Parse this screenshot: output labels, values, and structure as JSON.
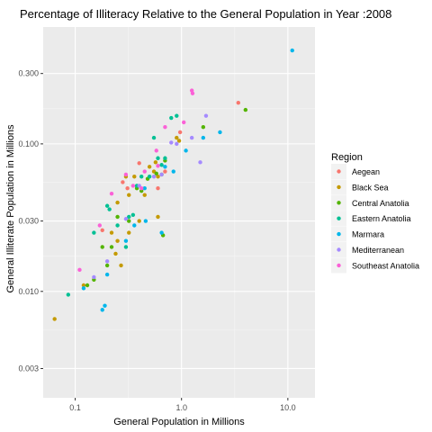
{
  "chart_data": {
    "type": "scatter",
    "title": "Percentage of Illiteracy Relative to the General Population in Year :2008",
    "xlabel": "General Population in Millions",
    "ylabel": "General Illiterate Population in Millions",
    "x_scale": "log10",
    "y_scale": "log10",
    "xlim": [
      0.05,
      18
    ],
    "ylim": [
      0.0019,
      0.62
    ],
    "xticks": [
      0.1,
      1.0,
      10.0
    ],
    "xtick_labels": [
      "0.1",
      "1.0",
      "10.0"
    ],
    "yticks": [
      0.003,
      0.01,
      0.03,
      0.1,
      0.3
    ],
    "ytick_labels": [
      "0.003",
      "0.010",
      "0.030",
      "0.100",
      "0.300"
    ],
    "grid": true,
    "legend_position": "right",
    "legend_title": "Region",
    "series": [
      {
        "name": "Aegean",
        "color": "#F8766D",
        "points": [
          [
            3.42,
            0.19
          ],
          [
            0.4,
            0.074
          ],
          [
            0.28,
            0.055
          ],
          [
            0.97,
            0.12
          ],
          [
            0.6,
            0.05
          ],
          [
            0.7,
            0.065
          ],
          [
            0.18,
            0.026
          ],
          [
            0.31,
            0.05
          ]
        ]
      },
      {
        "name": "Black Sea",
        "color": "#C49A00",
        "points": [
          [
            0.064,
            0.0065
          ],
          [
            0.12,
            0.011
          ],
          [
            0.25,
            0.04
          ],
          [
            0.22,
            0.025
          ],
          [
            0.3,
            0.06
          ],
          [
            0.25,
            0.022
          ],
          [
            0.24,
            0.018
          ],
          [
            0.36,
            0.06
          ],
          [
            0.45,
            0.045
          ],
          [
            0.5,
            0.07
          ],
          [
            0.55,
            0.065
          ],
          [
            0.57,
            0.075
          ],
          [
            0.9,
            0.11
          ],
          [
            0.95,
            0.105
          ],
          [
            0.4,
            0.03
          ],
          [
            0.27,
            0.015
          ],
          [
            0.32,
            0.025
          ],
          [
            0.6,
            0.06
          ],
          [
            0.32,
            0.045
          ],
          [
            0.6,
            0.032
          ]
        ]
      },
      {
        "name": "Central Anatolia",
        "color": "#53B400",
        "points": [
          [
            4.0,
            0.17
          ],
          [
            1.6,
            0.13
          ],
          [
            0.7,
            0.077
          ],
          [
            0.58,
            0.063
          ],
          [
            0.48,
            0.058
          ],
          [
            0.38,
            0.05
          ],
          [
            0.32,
            0.03
          ],
          [
            0.2,
            0.015
          ],
          [
            0.18,
            0.02
          ],
          [
            0.15,
            0.012
          ],
          [
            0.25,
            0.032
          ],
          [
            0.22,
            0.02
          ],
          [
            0.42,
            0.048
          ],
          [
            0.65,
            0.062
          ],
          [
            0.13,
            0.011
          ],
          [
            0.67,
            0.024
          ]
        ]
      },
      {
        "name": "Eastern Anatolia",
        "color": "#00C094",
        "points": [
          [
            0.086,
            0.0095
          ],
          [
            0.15,
            0.025
          ],
          [
            0.2,
            0.038
          ],
          [
            0.32,
            0.032
          ],
          [
            0.25,
            0.028
          ],
          [
            0.3,
            0.02
          ],
          [
            0.5,
            0.06
          ],
          [
            0.65,
            0.072
          ],
          [
            0.7,
            0.08
          ],
          [
            0.8,
            0.15
          ],
          [
            0.9,
            0.155
          ],
          [
            0.6,
            0.08
          ],
          [
            0.55,
            0.11
          ],
          [
            0.38,
            0.052
          ],
          [
            0.42,
            0.06
          ],
          [
            0.21,
            0.036
          ],
          [
            0.35,
            0.033
          ]
        ]
      },
      {
        "name": "Marmara",
        "color": "#00B6EB",
        "points": [
          [
            11.0,
            0.43
          ],
          [
            2.3,
            0.12
          ],
          [
            1.6,
            0.11
          ],
          [
            1.1,
            0.09
          ],
          [
            0.65,
            0.025
          ],
          [
            0.46,
            0.03
          ],
          [
            0.36,
            0.028
          ],
          [
            0.3,
            0.022
          ],
          [
            0.2,
            0.013
          ],
          [
            0.19,
            0.008
          ],
          [
            0.18,
            0.0075
          ],
          [
            0.12,
            0.0105
          ],
          [
            0.7,
            0.07
          ],
          [
            0.45,
            0.05
          ],
          [
            0.84,
            0.065
          ]
        ]
      },
      {
        "name": "Mediterranean",
        "color": "#A58AFF",
        "points": [
          [
            1.7,
            0.155
          ],
          [
            1.5,
            0.075
          ],
          [
            1.25,
            0.11
          ],
          [
            0.9,
            0.1
          ],
          [
            0.8,
            0.102
          ],
          [
            0.55,
            0.06
          ],
          [
            0.4,
            0.052
          ],
          [
            0.3,
            0.031
          ],
          [
            0.2,
            0.016
          ],
          [
            0.15,
            0.0125
          ],
          [
            0.65,
            0.062
          ]
        ]
      },
      {
        "name": "Southeast Anatolia",
        "color": "#FB61D7",
        "points": [
          [
            1.25,
            0.23
          ],
          [
            1.27,
            0.22
          ],
          [
            1.05,
            0.14
          ],
          [
            0.7,
            0.13
          ],
          [
            0.58,
            0.09
          ],
          [
            0.45,
            0.065
          ],
          [
            0.3,
            0.062
          ],
          [
            0.22,
            0.046
          ],
          [
            0.42,
            0.05
          ],
          [
            0.35,
            0.052
          ],
          [
            0.11,
            0.014
          ],
          [
            0.17,
            0.028
          ],
          [
            0.6,
            0.071
          ]
        ]
      }
    ]
  }
}
